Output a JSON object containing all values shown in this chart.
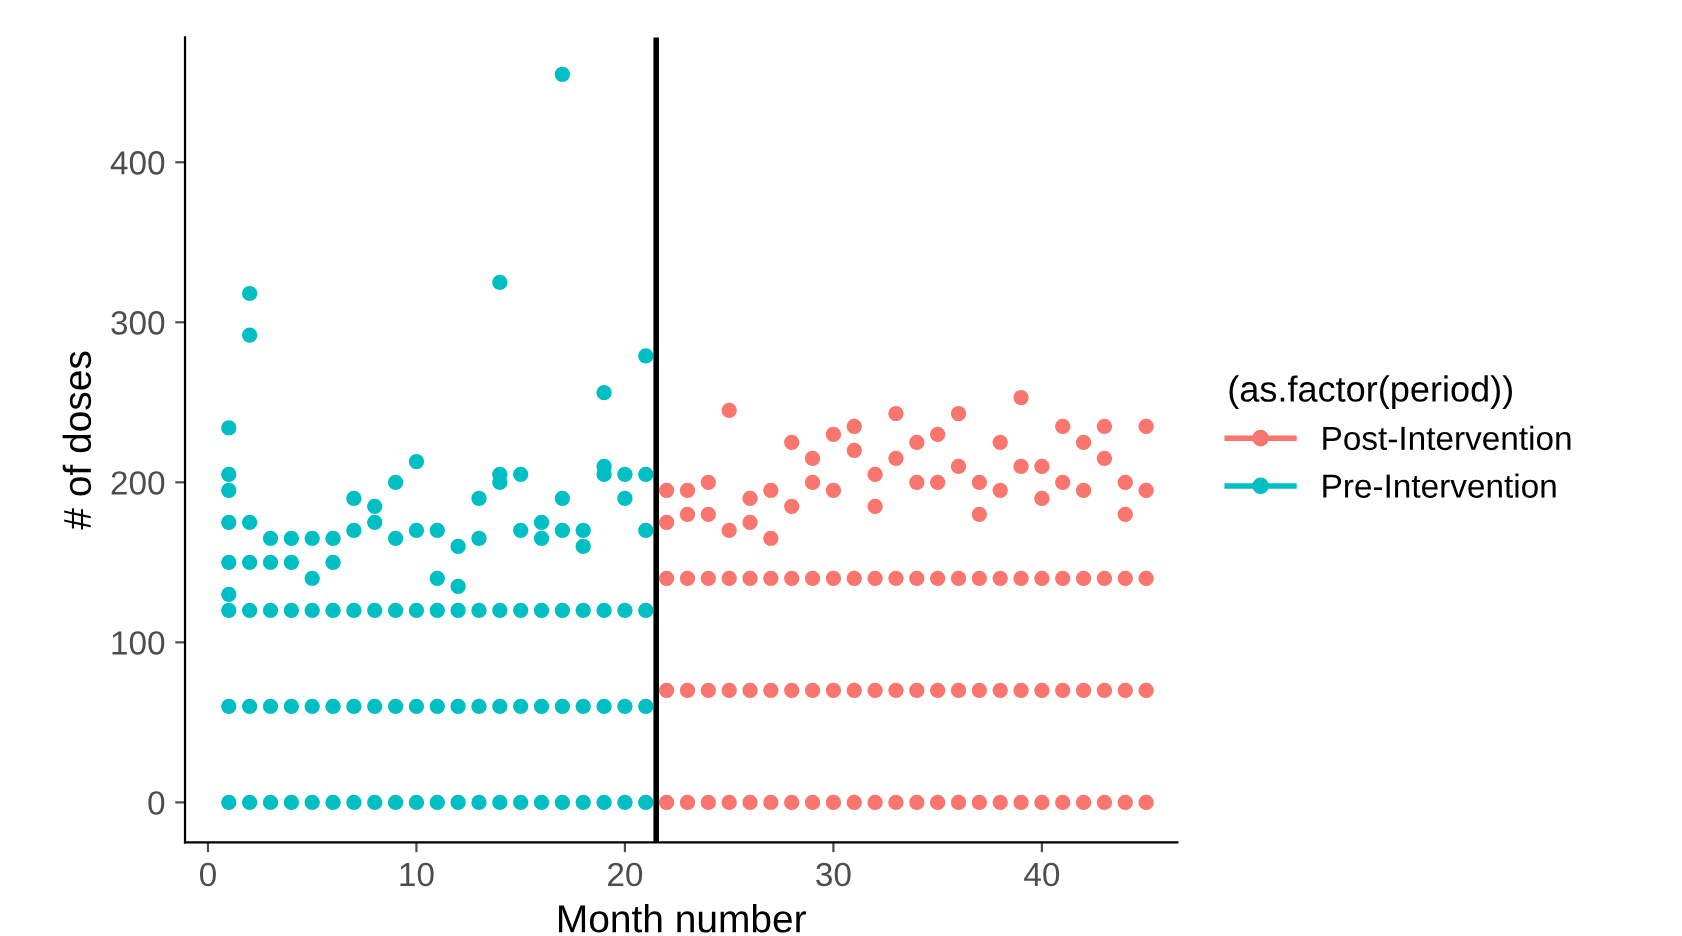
{
  "chart_data": {
    "type": "scatter",
    "xlabel": "Month number",
    "ylabel": "# of doses",
    "legend_title": "(as.factor(period))",
    "legend": "right",
    "grid": false,
    "marker": "circle",
    "xlim": [
      -1.1,
      46.5
    ],
    "xticks": [
      0,
      10,
      20,
      30,
      40
    ],
    "ylim": [
      -25,
      478
    ],
    "yticks": [
      0,
      100,
      200,
      300,
      400
    ],
    "ref_lines": [
      {
        "axis": "x",
        "value": 21.5,
        "color": "#000000"
      }
    ],
    "series": [
      {
        "name": "Post-Intervention",
        "color": "#f8766d",
        "x": [
          22,
          22,
          22,
          22,
          22,
          23,
          23,
          23,
          23,
          23,
          24,
          24,
          24,
          24,
          24,
          25,
          25,
          25,
          25,
          25,
          26,
          26,
          26,
          26,
          26,
          27,
          27,
          27,
          27,
          27,
          28,
          28,
          28,
          28,
          28,
          29,
          29,
          29,
          29,
          29,
          30,
          30,
          30,
          30,
          30,
          31,
          31,
          31,
          31,
          31,
          32,
          32,
          32,
          32,
          32,
          33,
          33,
          33,
          33,
          33,
          34,
          34,
          34,
          34,
          34,
          35,
          35,
          35,
          35,
          35,
          36,
          36,
          36,
          36,
          36,
          37,
          37,
          37,
          37,
          37,
          38,
          38,
          38,
          38,
          38,
          39,
          39,
          39,
          39,
          39,
          40,
          40,
          40,
          40,
          40,
          41,
          41,
          41,
          41,
          41,
          42,
          42,
          42,
          42,
          42,
          43,
          43,
          43,
          43,
          43,
          44,
          44,
          44,
          44,
          44,
          45,
          45,
          45,
          45,
          45
        ],
        "values": [
          0,
          70,
          140,
          195,
          175,
          0,
          70,
          140,
          195,
          180,
          0,
          70,
          140,
          200,
          180,
          0,
          70,
          140,
          245,
          170,
          0,
          70,
          140,
          190,
          175,
          0,
          70,
          140,
          195,
          165,
          0,
          70,
          140,
          225,
          185,
          0,
          70,
          140,
          215,
          200,
          0,
          70,
          140,
          230,
          195,
          0,
          70,
          140,
          235,
          220,
          0,
          70,
          140,
          205,
          185,
          0,
          70,
          140,
          243,
          215,
          0,
          70,
          140,
          225,
          200,
          0,
          70,
          140,
          230,
          200,
          0,
          70,
          140,
          243,
          210,
          0,
          70,
          140,
          200,
          180,
          0,
          70,
          140,
          225,
          195,
          0,
          70,
          140,
          253,
          210,
          0,
          70,
          140,
          210,
          190,
          0,
          70,
          140,
          235,
          200,
          0,
          70,
          140,
          225,
          195,
          0,
          70,
          140,
          235,
          215,
          0,
          70,
          140,
          200,
          180,
          0,
          70,
          140,
          235,
          195
        ]
      },
      {
        "name": "Pre-Intervention",
        "color": "#00bfc4",
        "x": [
          1,
          1,
          1,
          1,
          1,
          1,
          1,
          1,
          1,
          2,
          2,
          2,
          2,
          2,
          2,
          2,
          3,
          3,
          3,
          3,
          3,
          4,
          4,
          4,
          4,
          4,
          5,
          5,
          5,
          5,
          5,
          6,
          6,
          6,
          6,
          6,
          7,
          7,
          7,
          7,
          7,
          8,
          8,
          8,
          8,
          8,
          9,
          9,
          9,
          9,
          9,
          10,
          10,
          10,
          10,
          10,
          11,
          11,
          11,
          11,
          11,
          12,
          12,
          12,
          12,
          12,
          13,
          13,
          13,
          13,
          13,
          14,
          14,
          14,
          14,
          14,
          14,
          15,
          15,
          15,
          15,
          15,
          16,
          16,
          16,
          16,
          16,
          17,
          17,
          17,
          17,
          17,
          17,
          18,
          18,
          18,
          18,
          18,
          19,
          19,
          19,
          19,
          19,
          19,
          20,
          20,
          20,
          20,
          20,
          21,
          21,
          21,
          21,
          21,
          21
        ],
        "values": [
          0,
          60,
          120,
          234,
          205,
          195,
          175,
          150,
          130,
          0,
          60,
          120,
          318,
          292,
          175,
          150,
          0,
          60,
          120,
          165,
          150,
          0,
          60,
          120,
          165,
          150,
          0,
          60,
          120,
          165,
          140,
          0,
          60,
          120,
          165,
          150,
          0,
          60,
          120,
          190,
          170,
          0,
          60,
          120,
          185,
          175,
          0,
          60,
          120,
          200,
          165,
          0,
          60,
          120,
          213,
          170,
          0,
          60,
          120,
          170,
          140,
          0,
          60,
          120,
          160,
          135,
          0,
          60,
          120,
          190,
          165,
          0,
          60,
          120,
          325,
          205,
          200,
          0,
          60,
          120,
          205,
          170,
          0,
          60,
          120,
          175,
          165,
          0,
          60,
          120,
          455,
          190,
          170,
          0,
          60,
          120,
          170,
          160,
          0,
          60,
          120,
          256,
          210,
          205,
          0,
          60,
          120,
          205,
          190,
          0,
          60,
          120,
          279,
          205,
          170
        ]
      }
    ]
  }
}
